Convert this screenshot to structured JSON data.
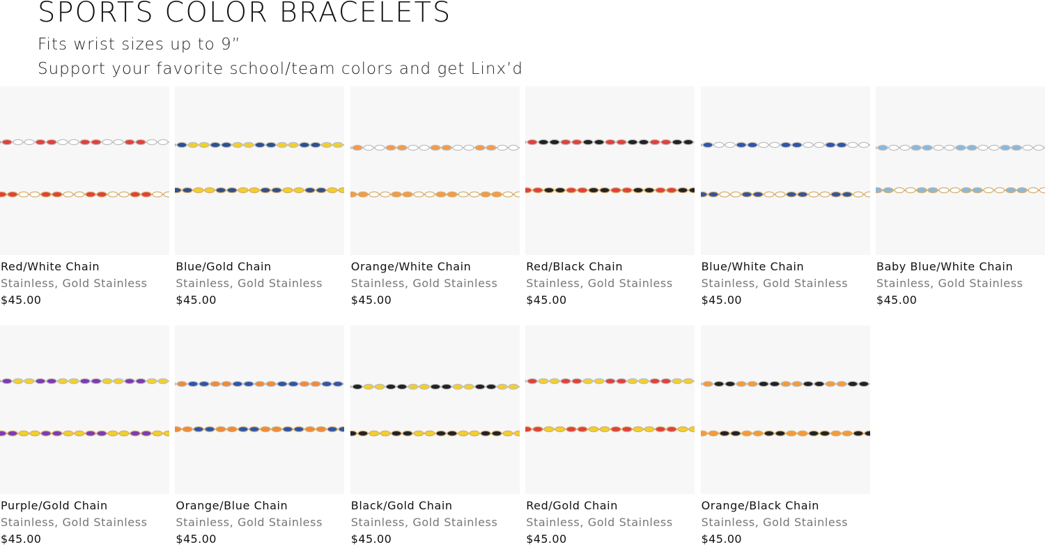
{
  "header": {
    "title": "SPORTS COLOR BRACELETS",
    "subtitle_lines": [
      "Fits wrist sizes up to 9”",
      "Support your favorite school/team colors and get Linx’d"
    ]
  },
  "products": [
    {
      "name": "Red/White Chain",
      "variants": "Stainless, Gold Stainless",
      "price": "$45.00"
    },
    {
      "name": "Blue/Gold Chain",
      "variants": "Stainless, Gold Stainless",
      "price": "$45.00"
    },
    {
      "name": "Orange/White Chain",
      "variants": "Stainless, Gold Stainless",
      "price": "$45.00"
    },
    {
      "name": "Red/Black Chain",
      "variants": "Stainless, Gold Stainless",
      "price": "$45.00"
    },
    {
      "name": "Blue/White Chain",
      "variants": "Stainless, Gold Stainless",
      "price": "$45.00"
    },
    {
      "name": "Baby Blue/White Chain",
      "variants": "Stainless, Gold Stainless",
      "price": "$45.00"
    },
    {
      "name": "Purple/Gold Chain",
      "variants": "Stainless, Gold Stainless",
      "price": "$45.00"
    },
    {
      "name": "Orange/Blue Chain",
      "variants": "Stainless, Gold Stainless",
      "price": "$45.00"
    },
    {
      "name": "Black/Gold Chain",
      "variants": "Stainless, Gold Stainless",
      "price": "$45.00"
    },
    {
      "name": "Red/Gold Chain",
      "variants": "Stainless, Gold Stainless",
      "price": "$45.00"
    },
    {
      "name": "Orange/Black Chain",
      "variants": "Stainless, Gold Stainless",
      "price": "$45.00"
    }
  ]
}
